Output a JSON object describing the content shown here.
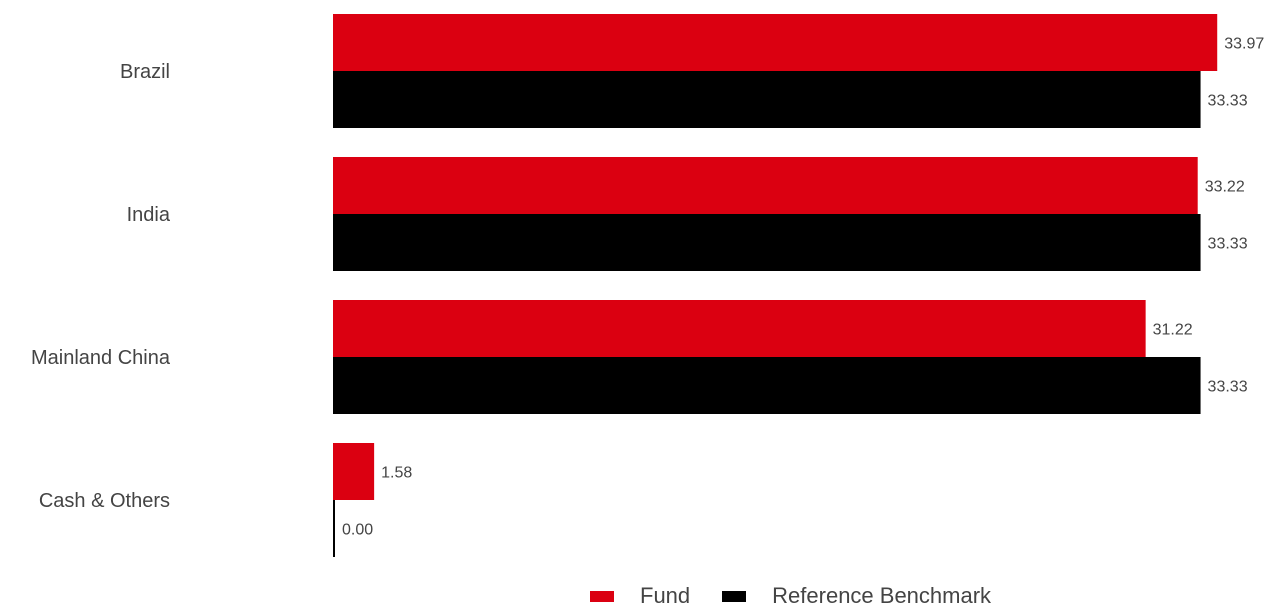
{
  "chart_data": {
    "type": "bar",
    "orientation": "horizontal",
    "categories": [
      "Brazil",
      "India",
      "Mainland China",
      "Cash & Others"
    ],
    "series": [
      {
        "name": "Fund",
        "color": "#db0011",
        "values": [
          33.97,
          33.22,
          31.22,
          1.58
        ],
        "labels": [
          "33.97",
          "33.22",
          "31.22",
          "1.58"
        ]
      },
      {
        "name": "Reference Benchmark",
        "color": "#000000",
        "values": [
          33.33,
          33.33,
          33.33,
          0.0
        ],
        "labels": [
          "33.33",
          "33.33",
          "33.33",
          "0.00"
        ]
      }
    ],
    "xlim": [
      0,
      34
    ],
    "grid": false,
    "legend": "bottom"
  }
}
